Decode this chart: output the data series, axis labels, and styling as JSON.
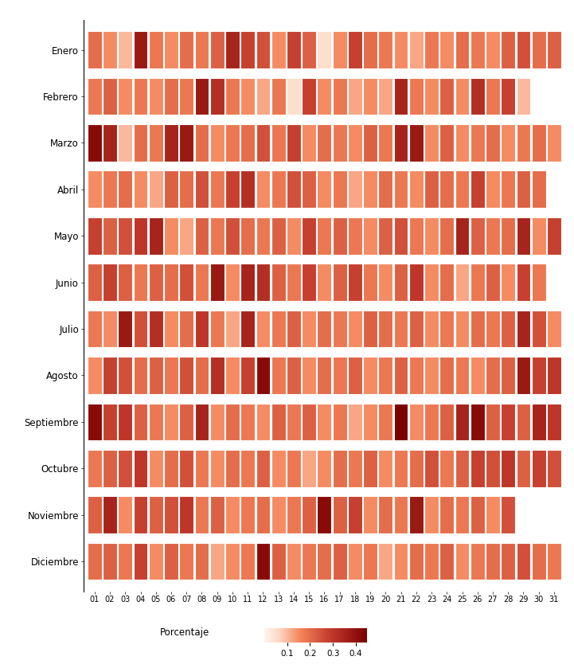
{
  "months": [
    "Enero",
    "Febrero",
    "Marzo",
    "Abril",
    "Mayo",
    "Junio",
    "Julio",
    "Agosto",
    "Septiembre",
    "Octubre",
    "Noviembre",
    "Diciembre"
  ],
  "days": [
    "01",
    "02",
    "03",
    "04",
    "05",
    "06",
    "07",
    "08",
    "09",
    "10",
    "11",
    "12",
    "13",
    "14",
    "15",
    "16",
    "17",
    "18",
    "19",
    "20",
    "21",
    "22",
    "23",
    "24",
    "25",
    "26",
    "27",
    "28",
    "29",
    "30",
    "31"
  ],
  "data": [
    [
      0.2,
      0.15,
      0.1,
      0.38,
      0.18,
      0.15,
      0.2,
      0.18,
      0.22,
      0.35,
      0.28,
      0.25,
      0.15,
      0.28,
      0.22,
      0.05,
      0.15,
      0.28,
      0.2,
      0.18,
      0.15,
      0.12,
      0.18,
      0.15,
      0.2,
      0.18,
      0.15,
      0.22,
      0.25,
      0.2,
      0.22
    ],
    [
      0.18,
      0.22,
      0.15,
      0.18,
      0.15,
      0.2,
      0.18,
      0.38,
      0.32,
      0.18,
      0.15,
      0.12,
      0.18,
      0.05,
      0.28,
      0.15,
      0.18,
      0.12,
      0.15,
      0.12,
      0.35,
      0.18,
      0.15,
      0.22,
      0.15,
      0.32,
      0.18,
      0.28,
      0.1,
      null,
      null
    ],
    [
      0.42,
      0.35,
      0.1,
      0.2,
      0.18,
      0.35,
      0.38,
      0.2,
      0.15,
      0.18,
      0.2,
      0.25,
      0.18,
      0.28,
      0.15,
      0.2,
      0.18,
      0.15,
      0.22,
      0.18,
      0.35,
      0.38,
      0.15,
      0.22,
      0.15,
      0.18,
      0.2,
      0.15,
      0.18,
      0.2,
      0.15
    ],
    [
      0.15,
      0.18,
      0.2,
      0.15,
      0.12,
      0.22,
      0.2,
      0.25,
      0.18,
      0.28,
      0.32,
      0.15,
      0.18,
      0.25,
      0.22,
      0.15,
      0.18,
      0.12,
      0.15,
      0.2,
      0.18,
      0.15,
      0.22,
      0.2,
      0.18,
      0.28,
      0.15,
      0.18,
      0.22,
      0.2,
      null
    ],
    [
      0.28,
      0.22,
      0.25,
      0.3,
      0.35,
      0.15,
      0.12,
      0.22,
      0.18,
      0.25,
      0.2,
      0.18,
      0.22,
      0.15,
      0.28,
      0.18,
      0.22,
      0.18,
      0.15,
      0.22,
      0.25,
      0.18,
      0.15,
      0.2,
      0.35,
      0.22,
      0.18,
      0.2,
      0.35,
      0.15,
      0.28
    ],
    [
      0.22,
      0.28,
      0.22,
      0.18,
      0.22,
      0.2,
      0.25,
      0.18,
      0.38,
      0.15,
      0.35,
      0.32,
      0.22,
      0.18,
      0.28,
      0.15,
      0.22,
      0.28,
      0.18,
      0.15,
      0.22,
      0.3,
      0.15,
      0.2,
      0.12,
      0.18,
      0.22,
      0.15,
      0.28,
      0.18,
      null
    ],
    [
      0.18,
      0.15,
      0.38,
      0.25,
      0.32,
      0.15,
      0.2,
      0.3,
      0.18,
      0.12,
      0.35,
      0.15,
      0.18,
      0.22,
      0.15,
      0.2,
      0.18,
      0.15,
      0.22,
      0.2,
      0.18,
      0.22,
      0.15,
      0.18,
      0.15,
      0.2,
      0.18,
      0.22,
      0.35,
      0.25,
      0.15
    ],
    [
      0.15,
      0.28,
      0.25,
      0.2,
      0.22,
      0.18,
      0.25,
      0.2,
      0.32,
      0.15,
      0.28,
      0.42,
      0.18,
      0.22,
      0.15,
      0.2,
      0.18,
      0.22,
      0.15,
      0.18,
      0.22,
      0.18,
      0.15,
      0.2,
      0.18,
      0.15,
      0.2,
      0.22,
      0.38,
      0.28,
      0.3
    ],
    [
      0.42,
      0.28,
      0.3,
      0.22,
      0.18,
      0.15,
      0.22,
      0.35,
      0.15,
      0.2,
      0.18,
      0.15,
      0.22,
      0.18,
      0.22,
      0.15,
      0.18,
      0.12,
      0.15,
      0.18,
      0.45,
      0.15,
      0.18,
      0.22,
      0.35,
      0.42,
      0.22,
      0.28,
      0.22,
      0.35,
      0.3
    ],
    [
      0.18,
      0.22,
      0.25,
      0.3,
      0.15,
      0.2,
      0.25,
      0.18,
      0.15,
      0.2,
      0.18,
      0.22,
      0.15,
      0.18,
      0.12,
      0.15,
      0.2,
      0.18,
      0.22,
      0.15,
      0.18,
      0.2,
      0.25,
      0.18,
      0.22,
      0.28,
      0.25,
      0.3,
      0.22,
      0.28,
      0.25
    ],
    [
      0.22,
      0.35,
      0.15,
      0.28,
      0.22,
      0.25,
      0.3,
      0.18,
      0.22,
      0.15,
      0.18,
      0.2,
      0.15,
      0.18,
      0.22,
      0.42,
      0.22,
      0.28,
      0.15,
      0.2,
      0.18,
      0.38,
      0.15,
      0.2,
      0.18,
      0.22,
      0.15,
      0.25,
      null,
      null,
      null
    ],
    [
      0.2,
      0.22,
      0.18,
      0.28,
      0.15,
      0.22,
      0.18,
      0.2,
      0.12,
      0.15,
      0.18,
      0.42,
      0.22,
      0.15,
      0.18,
      0.2,
      0.22,
      0.15,
      0.18,
      0.12,
      0.15,
      0.2,
      0.18,
      0.22,
      0.15,
      0.18,
      0.2,
      0.22,
      0.25,
      0.2,
      0.18
    ]
  ],
  "vmin": 0.0,
  "vmax": 0.45,
  "colorbar_label": "Porcentaje",
  "colorbar_ticks": [
    0.1,
    0.2,
    0.3,
    0.4
  ],
  "figsize": [
    7.21,
    8.39
  ],
  "dpi": 100
}
